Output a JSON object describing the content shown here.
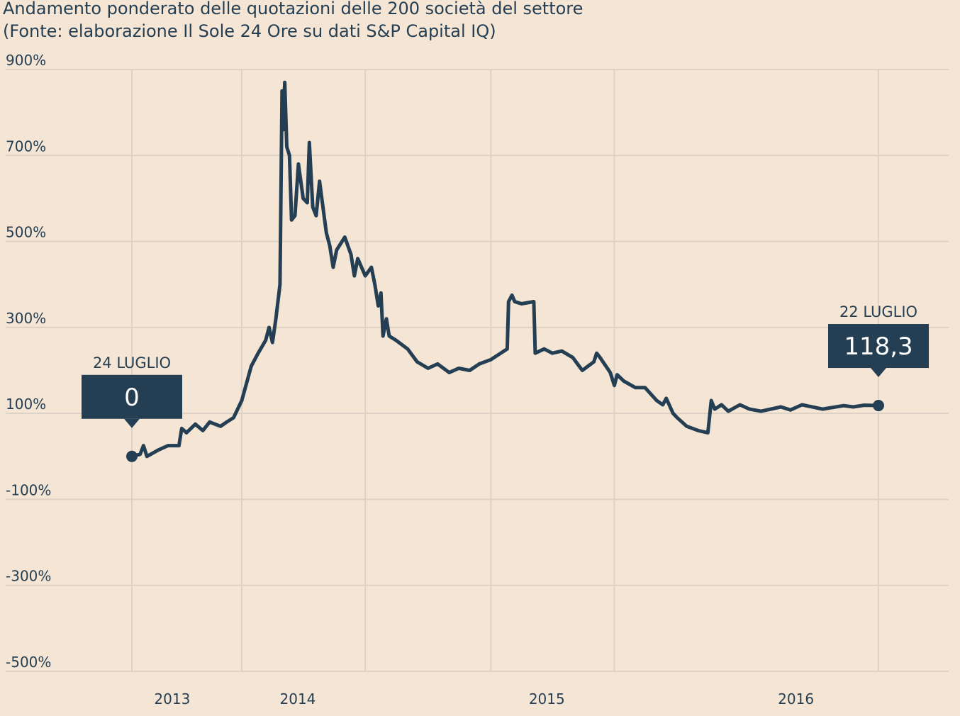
{
  "header": {
    "title": "Andamento  ponderato  delle  quotazioni  delle 200 società  del  settore",
    "subtitle": "(Fonte: elaborazione Il  Sole 24 Ore su dati S&P Capital IQ)"
  },
  "colors": {
    "background": "#f5e5d5",
    "line": "#243f53",
    "grid": "#ddd2c6",
    "callout": "#243f53",
    "callout_text": "#ffffff"
  },
  "chart_data": {
    "type": "line",
    "title": "Andamento  ponderato  delle  quotazioni  delle 200 società  del  settore",
    "subtitle": "(Fonte: elaborazione Il  Sole 24 Ore su dati S&P Capital IQ)",
    "xlabel": "",
    "ylabel": "",
    "x_range": [
      "2013-07-24",
      "2016-07-22"
    ],
    "x_ticks": [
      {
        "date": "2013-07-01",
        "label": "2013"
      },
      {
        "date": "2014-01-01",
        "label": "2014"
      },
      {
        "date": "2015-01-01",
        "label": "2015"
      },
      {
        "date": "2016-01-01",
        "label": "2016"
      }
    ],
    "x_gridlines": [
      "2013-07-24",
      "2014-01-01",
      "2014-07-01",
      "2015-01-01",
      "2015-07-01",
      "2016-07-22"
    ],
    "ylim": [
      -500,
      900
    ],
    "y_ticks": [
      900,
      700,
      500,
      300,
      100,
      -100,
      -300,
      -500
    ],
    "y_tick_labels": [
      "900%",
      "700%",
      "500%",
      "300%",
      "100%",
      "-100%",
      "-300%",
      "-500%"
    ],
    "grid": true,
    "series": [
      {
        "name": "",
        "points": [
          [
            "2013-07-24",
            0
          ],
          [
            "2013-08-05",
            5
          ],
          [
            "2013-08-10",
            25
          ],
          [
            "2013-08-15",
            0
          ],
          [
            "2013-09-01",
            15
          ],
          [
            "2013-09-15",
            25
          ],
          [
            "2013-10-01",
            25
          ],
          [
            "2013-10-05",
            65
          ],
          [
            "2013-10-12",
            55
          ],
          [
            "2013-10-25",
            75
          ],
          [
            "2013-11-05",
            60
          ],
          [
            "2013-11-15",
            80
          ],
          [
            "2013-12-01",
            70
          ],
          [
            "2013-12-10",
            80
          ],
          [
            "2013-12-20",
            90
          ],
          [
            "2014-01-01",
            130
          ],
          [
            "2014-01-08",
            170
          ],
          [
            "2014-01-15",
            210
          ],
          [
            "2014-01-25",
            240
          ],
          [
            "2014-02-05",
            270
          ],
          [
            "2014-02-10",
            300
          ],
          [
            "2014-02-15",
            265
          ],
          [
            "2014-02-20",
            320
          ],
          [
            "2014-02-26",
            400
          ],
          [
            "2014-03-01",
            850
          ],
          [
            "2014-03-03",
            760
          ],
          [
            "2014-03-05",
            870
          ],
          [
            "2014-03-08",
            720
          ],
          [
            "2014-03-12",
            700
          ],
          [
            "2014-03-15",
            550
          ],
          [
            "2014-03-20",
            560
          ],
          [
            "2014-03-25",
            680
          ],
          [
            "2014-04-01",
            600
          ],
          [
            "2014-04-07",
            590
          ],
          [
            "2014-04-10",
            730
          ],
          [
            "2014-04-15",
            580
          ],
          [
            "2014-04-20",
            560
          ],
          [
            "2014-04-25",
            640
          ],
          [
            "2014-05-05",
            520
          ],
          [
            "2014-05-10",
            490
          ],
          [
            "2014-05-15",
            440
          ],
          [
            "2014-05-20",
            480
          ],
          [
            "2014-06-01",
            510
          ],
          [
            "2014-06-10",
            470
          ],
          [
            "2014-06-15",
            420
          ],
          [
            "2014-06-20",
            460
          ],
          [
            "2014-07-01",
            420
          ],
          [
            "2014-07-10",
            440
          ],
          [
            "2014-07-15",
            400
          ],
          [
            "2014-07-20",
            350
          ],
          [
            "2014-07-24",
            380
          ],
          [
            "2014-07-27",
            280
          ],
          [
            "2014-08-01",
            320
          ],
          [
            "2014-08-05",
            280
          ],
          [
            "2014-08-15",
            270
          ],
          [
            "2014-09-01",
            250
          ],
          [
            "2014-09-15",
            220
          ],
          [
            "2014-10-01",
            205
          ],
          [
            "2014-10-15",
            215
          ],
          [
            "2014-11-01",
            195
          ],
          [
            "2014-11-15",
            205
          ],
          [
            "2014-12-01",
            200
          ],
          [
            "2014-12-15",
            215
          ],
          [
            "2015-01-01",
            225
          ],
          [
            "2015-01-25",
            250
          ],
          [
            "2015-01-27",
            360
          ],
          [
            "2015-02-01",
            375
          ],
          [
            "2015-02-05",
            360
          ],
          [
            "2015-02-15",
            355
          ],
          [
            "2015-03-05",
            360
          ],
          [
            "2015-03-07",
            240
          ],
          [
            "2015-03-20",
            250
          ],
          [
            "2015-04-01",
            240
          ],
          [
            "2015-04-15",
            245
          ],
          [
            "2015-05-01",
            230
          ],
          [
            "2015-05-15",
            200
          ],
          [
            "2015-06-01",
            220
          ],
          [
            "2015-06-05",
            240
          ],
          [
            "2015-06-10",
            230
          ],
          [
            "2015-06-25",
            195
          ],
          [
            "2015-07-01",
            165
          ],
          [
            "2015-07-05",
            190
          ],
          [
            "2015-07-15",
            175
          ],
          [
            "2015-08-01",
            160
          ],
          [
            "2015-08-15",
            160
          ],
          [
            "2015-09-01",
            130
          ],
          [
            "2015-09-10",
            120
          ],
          [
            "2015-09-15",
            135
          ],
          [
            "2015-09-25",
            100
          ],
          [
            "2015-10-01",
            90
          ],
          [
            "2015-10-15",
            70
          ],
          [
            "2015-11-01",
            60
          ],
          [
            "2015-11-15",
            55
          ],
          [
            "2015-11-20",
            130
          ],
          [
            "2015-11-25",
            110
          ],
          [
            "2015-12-05",
            120
          ],
          [
            "2015-12-15",
            105
          ],
          [
            "2016-01-01",
            120
          ],
          [
            "2016-01-15",
            110
          ],
          [
            "2016-02-01",
            105
          ],
          [
            "2016-03-01",
            115
          ],
          [
            "2016-03-15",
            108
          ],
          [
            "2016-04-01",
            120
          ],
          [
            "2016-05-01",
            110
          ],
          [
            "2016-06-01",
            118
          ],
          [
            "2016-06-15",
            115
          ],
          [
            "2016-07-01",
            119
          ],
          [
            "2016-07-22",
            118.3
          ]
        ]
      }
    ],
    "annotations": [
      {
        "label": "24 LUGLIO",
        "value": "0",
        "date": "2013-07-24",
        "y": 0
      },
      {
        "label": "22 LUGLIO",
        "value": "118,3",
        "date": "2016-07-22",
        "y": 118.3
      }
    ]
  }
}
